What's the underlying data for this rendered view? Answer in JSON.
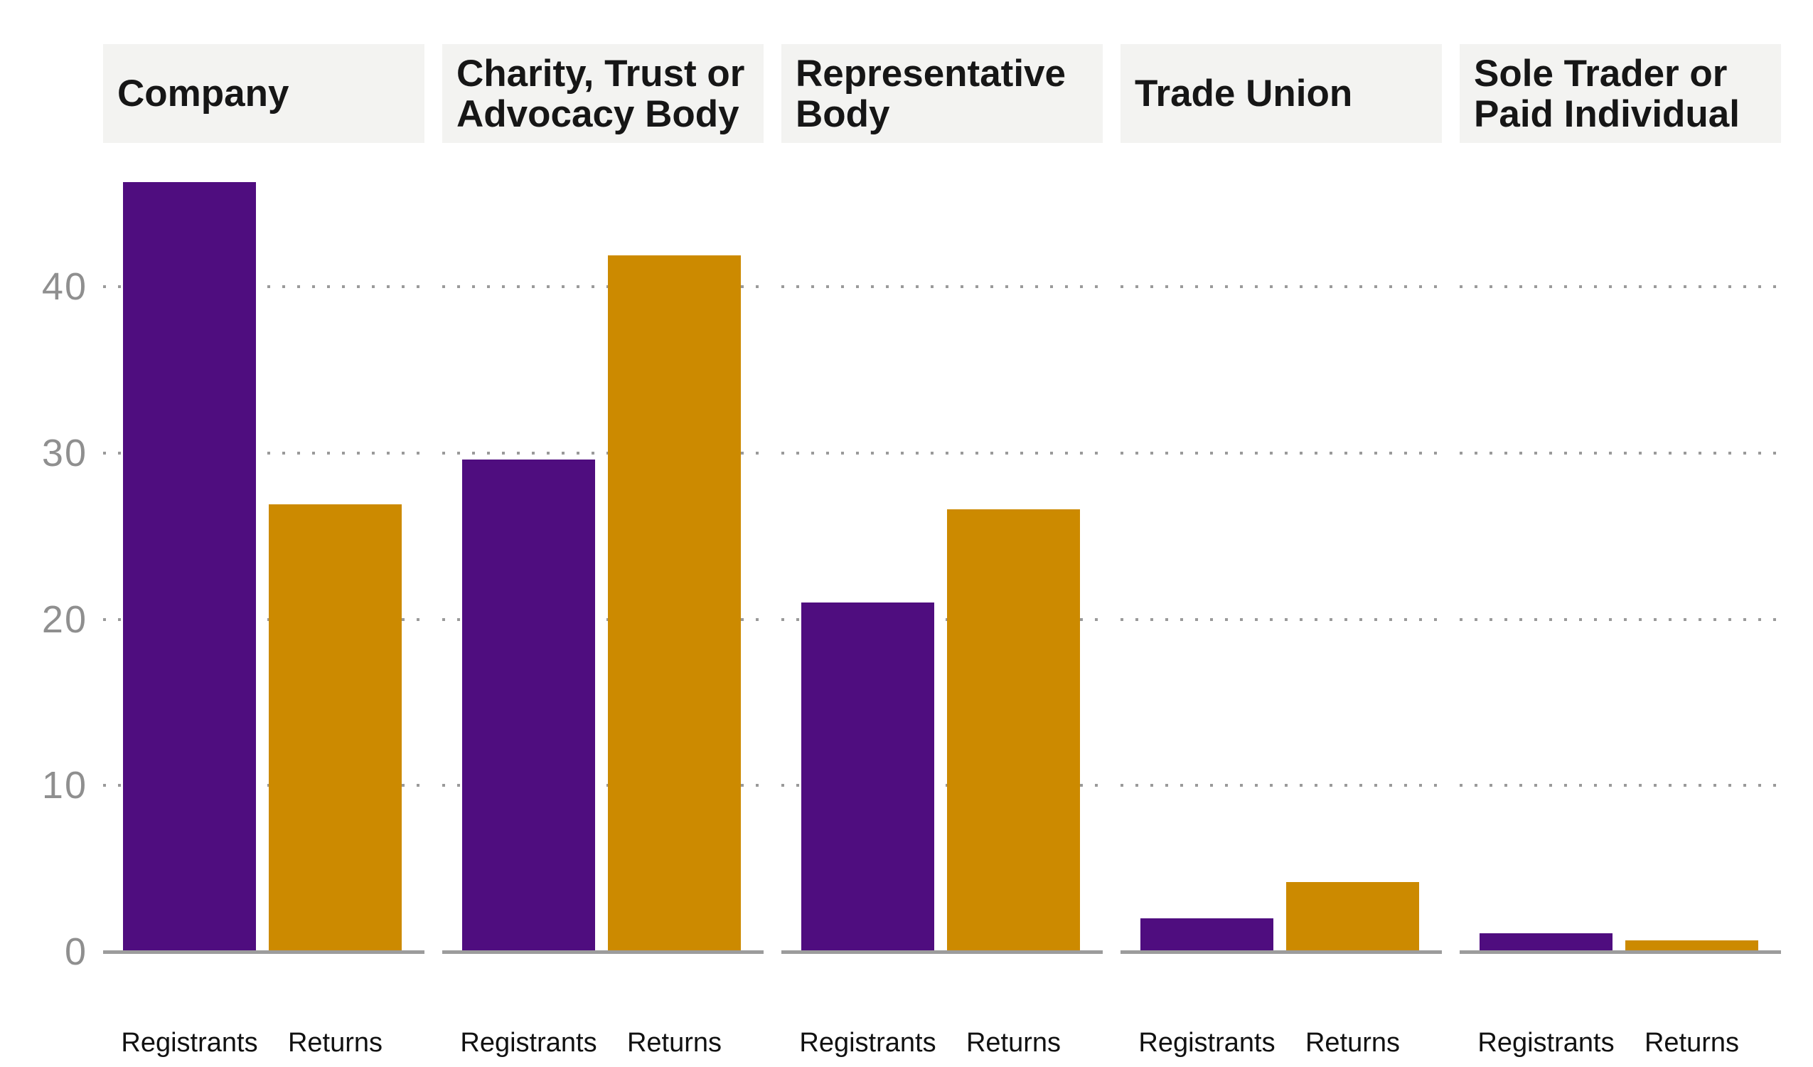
{
  "chart_data": {
    "type": "bar",
    "title": "",
    "facet_layout": "5 side-by-side panels sharing one y axis",
    "x_categories": [
      "Registrants",
      "Returns"
    ],
    "y_axis": {
      "range": [
        0,
        47
      ],
      "ticks": [
        0,
        10,
        20,
        30,
        40
      ],
      "tick_labels_top_to_bottom": [
        "40",
        "30",
        "20",
        "10",
        "0"
      ],
      "gridlines": "dotted horizontal at 10, 20, 30, 40",
      "baseline": "solid grey at 0 per panel"
    },
    "panels": [
      {
        "title": "Company",
        "registrants": 46.3,
        "returns": 26.9
      },
      {
        "title": "Charity, Trust or Advocacy Body",
        "registrants": 29.6,
        "returns": 41.9
      },
      {
        "title": "Representative Body",
        "registrants": 21.0,
        "returns": 26.6
      },
      {
        "title": "Trade Union",
        "registrants": 2.0,
        "returns": 4.2
      },
      {
        "title": "Sole Trader or Paid Individual",
        "registrants": 1.1,
        "returns": 0.7
      }
    ],
    "colors": {
      "registrants": "#4f0d7f",
      "returns": "#cc8a00",
      "header_background": "#f3f3f1",
      "axis_line": "#9c9c9c",
      "tick_label": "#8f8f8f",
      "label_text": "#111111"
    },
    "legend_position": "none"
  }
}
